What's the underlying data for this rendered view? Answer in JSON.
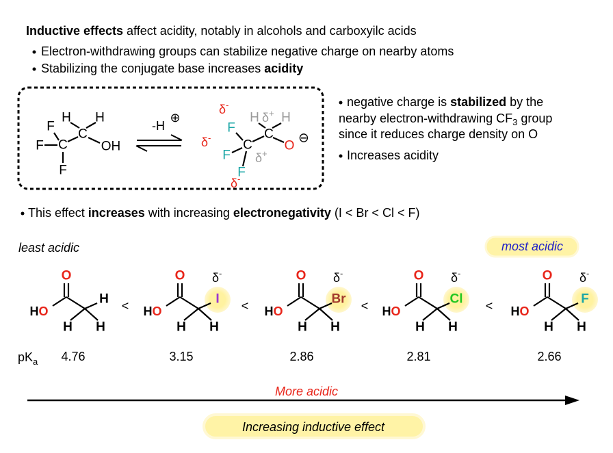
{
  "intro": {
    "bold": "Inductive effects",
    "text": " affect acidity, notably in alcohols and carboxyilc acids"
  },
  "bullets": [
    {
      "text": "Electron-withdrawing groups can stabilize negative charge on nearby atoms"
    },
    {
      "text": "Stabilizing the conjugate base increases ",
      "bold": "acidity"
    }
  ],
  "reaction": {
    "reactant_atoms": {
      "f": "F",
      "h": "H",
      "c": "C",
      "oh": "OH"
    },
    "reagent": "-H",
    "reagent_charge": "⊕",
    "product_atoms": {
      "f": "F",
      "h": "H",
      "c": "C",
      "o": "O",
      "charge": "⊖"
    },
    "delta": "δ",
    "minus": "-",
    "plus": "+"
  },
  "note": {
    "pre": "negative charge is ",
    "bold": "stabilized",
    "post": " by the",
    "line2": "nearby electron-withdrawing CF",
    "line2_sub": "3",
    "line2_post": " group",
    "line3": "since it reduces charge density on O",
    "bullet2": "Increases acidity"
  },
  "trend": {
    "pre": "This effect ",
    "bold1": "increases",
    "mid": " with increasing ",
    "bold2": "electronegativity",
    "post": " (I < Br < Cl < F)"
  },
  "least": "least acidic",
  "most": "most acidic",
  "atoms": {
    "o": "O",
    "h": "H"
  },
  "delta": "δ",
  "minus": "-",
  "less_than": "<",
  "compounds": [
    {
      "substituent": "H",
      "color": "#000000",
      "highlight": false,
      "pka": 4.76
    },
    {
      "substituent": "I",
      "color": "#9b35d0",
      "highlight": true,
      "pka": 3.15
    },
    {
      "substituent": "Br",
      "color": "#a23a2c",
      "highlight": true,
      "pka": 2.86
    },
    {
      "substituent": "Cl",
      "color": "#22c722",
      "highlight": true,
      "pka": 2.81
    },
    {
      "substituent": "F",
      "color": "#1aa6a6",
      "highlight": true,
      "pka": 2.66
    }
  ],
  "pka_label": {
    "p": "pK",
    "sub": "a"
  },
  "arrow_label": "More acidic",
  "footer": "Increasing inductive effect"
}
